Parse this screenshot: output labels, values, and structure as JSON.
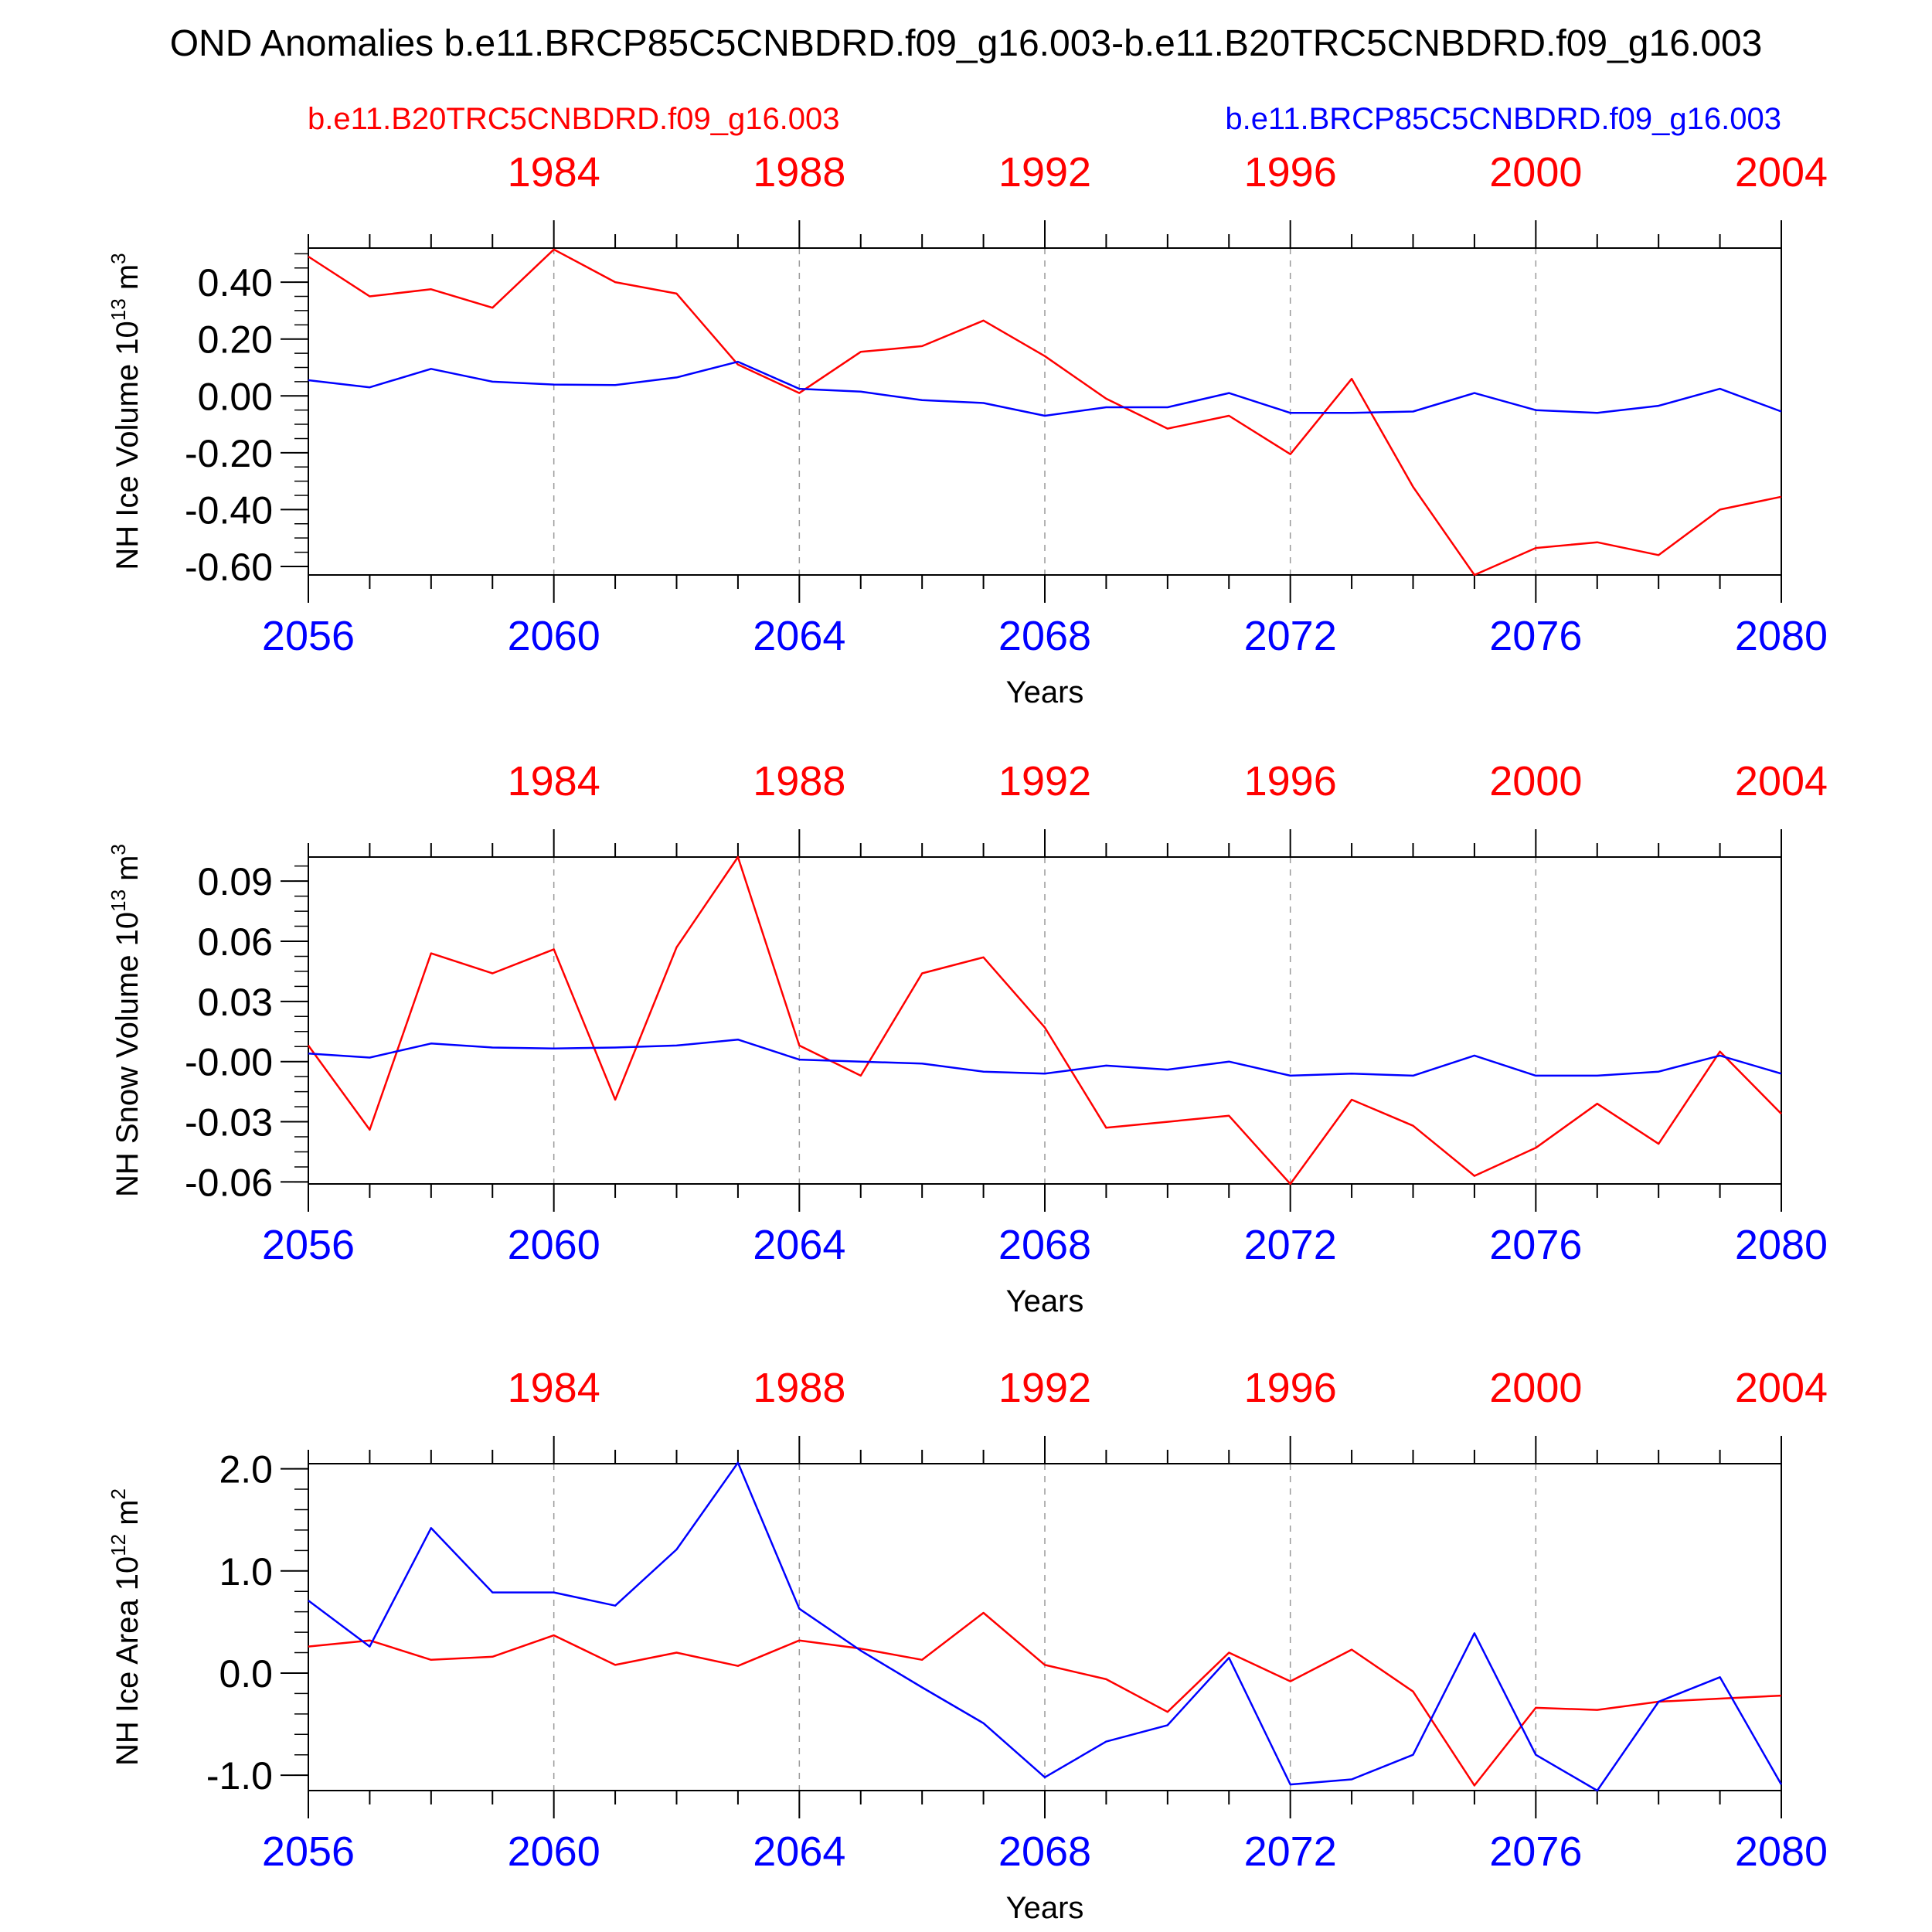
{
  "title": "OND Anomalies b.e11.BRCP85C5CNBDRD.f09_g16.003-b.e11.B20TRC5CNBDRD.f09_g16.003",
  "legend": {
    "control_label": "b.e11.B20TRC5CNBDRD.f09_g16.003",
    "experiment_label": "b.e11.BRCP85C5CNBDRD.f09_g16.003"
  },
  "colors": {
    "control": "#ff0000",
    "experiment": "#0000ff",
    "axis": "#000000",
    "grid": "#9a9a9a"
  },
  "chart_data": [
    {
      "type": "line",
      "ylabel": "NH Ice Volume 10",
      "ylabel_exp": "13",
      "ylabel_unit": " m",
      "ylabel_unit_exp": "3",
      "xlabel": "Years",
      "x_bottom": [
        2056,
        2057,
        2058,
        2059,
        2060,
        2061,
        2062,
        2063,
        2064,
        2065,
        2066,
        2067,
        2068,
        2069,
        2070,
        2071,
        2072,
        2073,
        2074,
        2075,
        2076,
        2077,
        2078,
        2079,
        2080
      ],
      "x_bottom_ticks": [
        "2056",
        "2060",
        "2064",
        "2068",
        "2072",
        "2076",
        "2080"
      ],
      "x_top_ticks": [
        "1984",
        "1988",
        "1992",
        "1996",
        "2000",
        "2004"
      ],
      "ylim": [
        -0.63,
        0.52
      ],
      "y_ticks": [
        0.4,
        0.2,
        0.0,
        -0.2,
        -0.4,
        -0.6
      ],
      "y_tick_labels": [
        "0.40",
        "0.20",
        "0.00",
        "-0.20",
        "-0.40",
        "-0.60"
      ],
      "y_minor_step": 0.05,
      "series": [
        {
          "name": "b.e11.B20TRC5CNBDRD.f09_g16.003",
          "color": "#ff0000",
          "values": [
            0.49,
            0.35,
            0.375,
            0.31,
            0.515,
            0.4,
            0.36,
            0.11,
            0.01,
            0.155,
            0.175,
            0.265,
            0.14,
            -0.01,
            -0.115,
            -0.07,
            -0.205,
            0.06,
            -0.32,
            -0.63,
            -0.535,
            -0.515,
            -0.56,
            -0.4,
            -0.355
          ]
        },
        {
          "name": "b.e11.BRCP85C5CNBDRD.f09_g16.003",
          "color": "#0000ff",
          "values": [
            0.055,
            0.03,
            0.095,
            0.05,
            0.04,
            0.038,
            0.065,
            0.12,
            0.025,
            0.015,
            -0.015,
            -0.025,
            -0.07,
            -0.04,
            -0.04,
            0.01,
            -0.06,
            -0.06,
            -0.055,
            0.01,
            -0.05,
            -0.06,
            -0.035,
            0.025,
            -0.055
          ]
        }
      ]
    },
    {
      "type": "line",
      "ylabel": "NH Snow Volume 10",
      "ylabel_exp": "13",
      "ylabel_unit": " m",
      "ylabel_unit_exp": "3",
      "xlabel": "Years",
      "x_bottom": [
        2056,
        2057,
        2058,
        2059,
        2060,
        2061,
        2062,
        2063,
        2064,
        2065,
        2066,
        2067,
        2068,
        2069,
        2070,
        2071,
        2072,
        2073,
        2074,
        2075,
        2076,
        2077,
        2078,
        2079,
        2080
      ],
      "x_bottom_ticks": [
        "2056",
        "2060",
        "2064",
        "2068",
        "2072",
        "2076",
        "2080"
      ],
      "x_top_ticks": [
        "1984",
        "1988",
        "1992",
        "1996",
        "2000",
        "2004"
      ],
      "ylim": [
        -0.061,
        0.102
      ],
      "y_ticks": [
        0.09,
        0.06,
        0.03,
        0.0,
        -0.03,
        -0.06
      ],
      "y_tick_labels": [
        "0.09",
        "0.06",
        "0.03",
        "-0.00",
        "-0.03",
        "-0.06"
      ],
      "y_minor_step": 0.0075,
      "series": [
        {
          "name": "b.e11.B20TRC5CNBDRD.f09_g16.003",
          "color": "#ff0000",
          "values": [
            0.008,
            -0.034,
            0.054,
            0.044,
            0.056,
            -0.019,
            0.057,
            0.102,
            0.008,
            -0.007,
            0.044,
            0.052,
            0.017,
            -0.033,
            -0.03,
            -0.027,
            -0.061,
            -0.019,
            -0.032,
            -0.057,
            -0.043,
            -0.021,
            -0.041,
            0.005,
            -0.026
          ]
        },
        {
          "name": "b.e11.BRCP85C5CNBDRD.f09_g16.003",
          "color": "#0000ff",
          "values": [
            0.004,
            0.002,
            0.009,
            0.007,
            0.0065,
            0.007,
            0.008,
            0.011,
            0.001,
            0.0,
            -0.001,
            -0.005,
            -0.006,
            -0.002,
            -0.004,
            0.0,
            -0.007,
            -0.006,
            -0.007,
            0.003,
            -0.007,
            -0.007,
            -0.005,
            0.003,
            -0.006
          ]
        }
      ]
    },
    {
      "type": "line",
      "ylabel": "NH Ice Area 10",
      "ylabel_exp": "12",
      "ylabel_unit": " m",
      "ylabel_unit_exp": "2",
      "xlabel": "Years",
      "x_bottom": [
        2056,
        2057,
        2058,
        2059,
        2060,
        2061,
        2062,
        2063,
        2064,
        2065,
        2066,
        2067,
        2068,
        2069,
        2070,
        2071,
        2072,
        2073,
        2074,
        2075,
        2076,
        2077,
        2078,
        2079,
        2080
      ],
      "x_bottom_ticks": [
        "2056",
        "2060",
        "2064",
        "2068",
        "2072",
        "2076",
        "2080"
      ],
      "x_top_ticks": [
        "1984",
        "1988",
        "1992",
        "1996",
        "2000",
        "2004"
      ],
      "ylim": [
        -1.15,
        2.05
      ],
      "y_ticks": [
        2.0,
        1.0,
        0.0,
        -1.0
      ],
      "y_tick_labels": [
        "2.0",
        "1.0",
        "0.0",
        "-1.0"
      ],
      "y_minor_step": 0.2,
      "series": [
        {
          "name": "b.e11.B20TRC5CNBDRD.f09_g16.003",
          "color": "#ff0000",
          "values": [
            0.26,
            0.32,
            0.13,
            0.16,
            0.37,
            0.08,
            0.2,
            0.07,
            0.32,
            0.24,
            0.13,
            0.59,
            0.08,
            -0.06,
            -0.38,
            0.2,
            -0.08,
            0.23,
            -0.18,
            -1.1,
            -0.34,
            -0.36,
            -0.28,
            -0.25,
            -0.22
          ]
        },
        {
          "name": "b.e11.BRCP85C5CNBDRD.f09_g16.003",
          "color": "#0000ff",
          "values": [
            0.71,
            0.26,
            1.42,
            0.79,
            0.79,
            0.66,
            1.21,
            2.06,
            0.63,
            0.22,
            -0.14,
            -0.49,
            -1.02,
            -0.67,
            -0.51,
            0.15,
            -1.09,
            -1.04,
            -0.8,
            0.39,
            -0.8,
            -1.15,
            -0.28,
            -0.04,
            -1.09
          ]
        }
      ]
    }
  ]
}
